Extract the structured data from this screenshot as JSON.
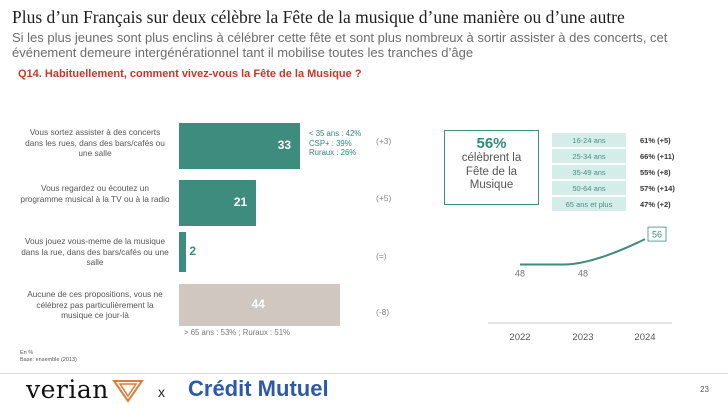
{
  "header": {
    "title": "Plus d’un Français sur deux célèbre la Fête de la musique d’une manière ou d’une autre",
    "subtitle": "Si les plus jeunes sont plus enclins à célébrer cette fête et sont plus nombreux à sortir assister à des concerts, cet événement demeure intergénérationnel tant il mobilise toutes les tranches d’âge",
    "question": "Q14. Habituellement, comment vivez-vous la Fête de la Musique ?"
  },
  "chart_data": [
    {
      "type": "bar",
      "orientation": "horizontal",
      "categories": [
        "Vous sortez assister à des concerts dans les rues, dans des bars/cafés ou une salle",
        "Vous regardez ou écoutez un programme musical à la TV ou à la radio",
        "Vous jouez vous-meme de la musique dans la rue, dans des bars/cafés ou une salle",
        "Aucune de ces propositions, vous ne célébrez pas particulièrement la musique ce jour-là"
      ],
      "values": [
        33,
        21,
        2,
        44
      ],
      "value_labels": [
        "33",
        "21",
        "2",
        "44"
      ],
      "deltas": [
        "(+3)",
        "(+5)",
        "(=)",
        "(-8)"
      ],
      "details": [
        [
          "< 35 ans : 42%",
          "CSP+ : 39%",
          "Ruraux : 26%"
        ],
        [],
        [],
        [
          "> 65 ans : 53% ; Ruraux : 51%"
        ]
      ],
      "colors": [
        "#3d8c7e",
        "#3d8c7e",
        "#3d8c7e",
        "#cfc7c0"
      ],
      "xlim": [
        0,
        44
      ]
    },
    {
      "type": "line",
      "x": [
        "2022",
        "2023",
        "2024"
      ],
      "values": [
        48,
        48,
        56
      ],
      "value_labels": [
        "48",
        "48",
        "56"
      ],
      "ylim": [
        40,
        62
      ],
      "color": "#3d8c7e"
    }
  ],
  "callout": {
    "pct": "56%",
    "text": "célèbrent la Fête de la Musique"
  },
  "age_table": [
    {
      "age": "16-24 ans",
      "value": "61%  (+5)"
    },
    {
      "age": "25-34 ans",
      "value": "66% (+11)"
    },
    {
      "age": "35-49 ans",
      "value": "55% (+8)"
    },
    {
      "age": "50-64 ans",
      "value": "57% (+14)"
    },
    {
      "age": "65 ans et plus",
      "value": "47% (+2)"
    }
  ],
  "notes": {
    "unit": "En %",
    "base": "Base: ensemble (2013)"
  },
  "footer": {
    "brand1": "verian",
    "separator": "x",
    "brand2": "Crédit Mutuel",
    "page": "23"
  }
}
